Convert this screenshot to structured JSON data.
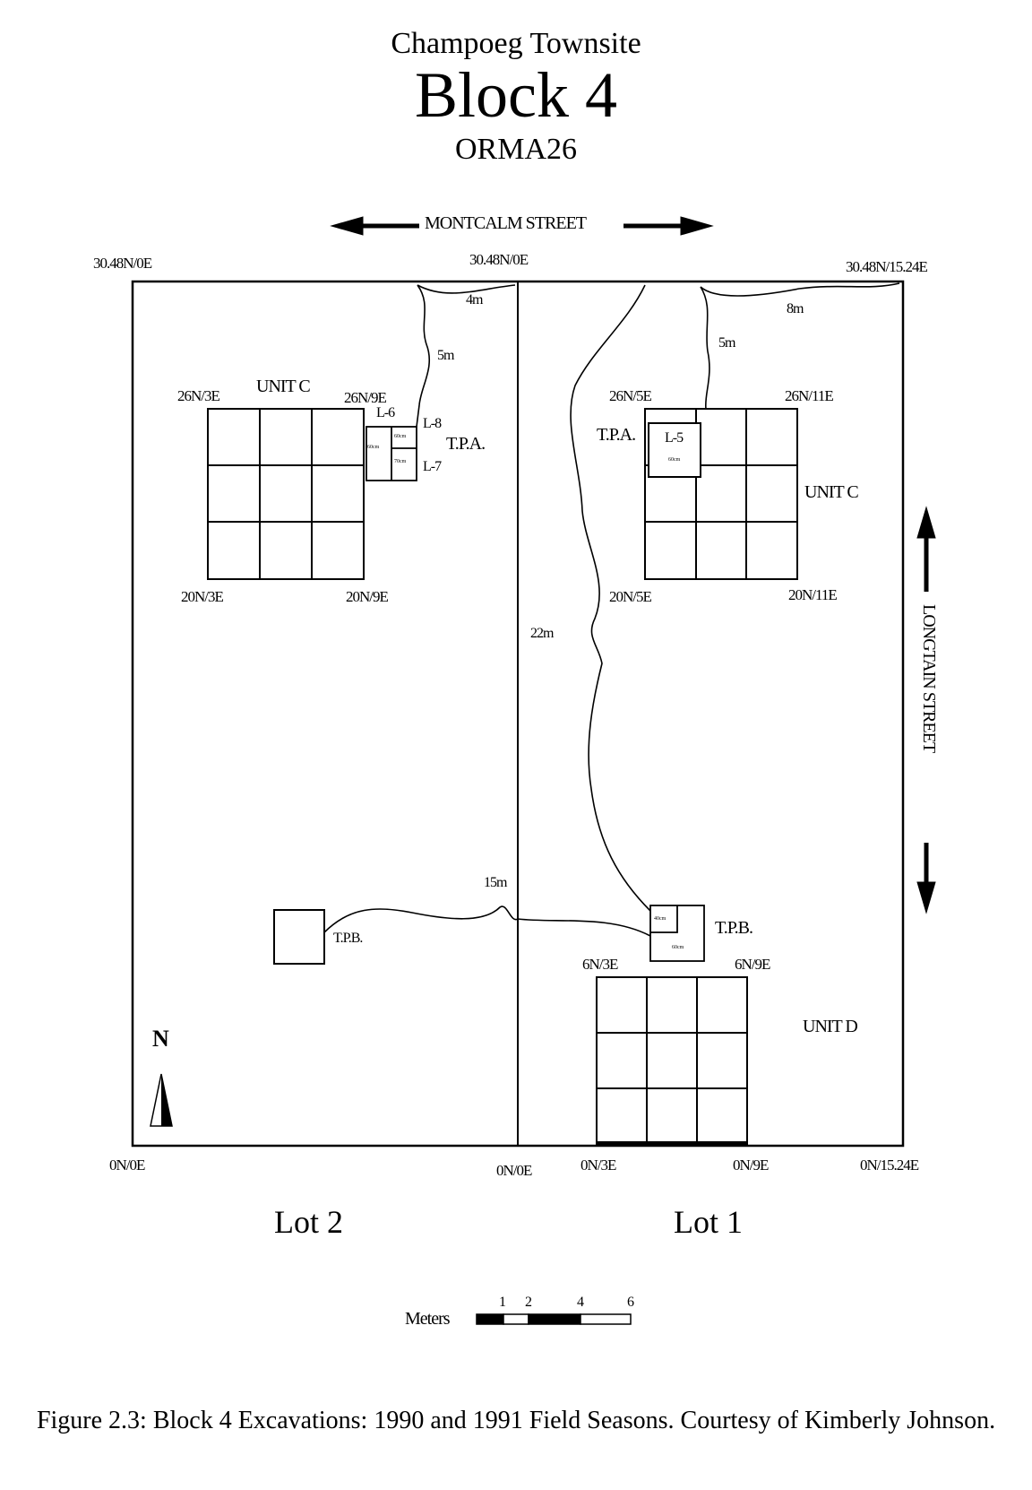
{
  "title": {
    "site": "Champoeg Townsite",
    "block": "Block 4",
    "code": "ORMA26"
  },
  "streets": {
    "top": "MONTCALM STREET",
    "right": "LONGTAIN STREET"
  },
  "corners": {
    "top_left": "30.48N/0E",
    "top_middle": "30.48N/0E",
    "top_right": "30.48N/15.24E",
    "bottom_left": "0N/0E",
    "bottom_middle": "0N/0E",
    "bottom_n3e": "0N/3E",
    "bottom_n9e": "0N/9E",
    "bottom_right": "0N/15.24E"
  },
  "lot2": {
    "label": "Lot 2",
    "unit_c": {
      "label": "UNIT C",
      "nw": "26N/3E",
      "ne": "26N/9E",
      "sw": "20N/3E",
      "se": "20N/9E"
    },
    "tpa": {
      "label": "T.P.A.",
      "l6": "L-6",
      "l7": "L-7",
      "l8": "L-8",
      "cell_a": "60cm",
      "cell_b": "60cm",
      "cell_c": "70cm"
    },
    "tpb": {
      "label": "T.P.B."
    },
    "dims": {
      "d4m": "4m",
      "d5m": "5m",
      "d15m": "15m"
    }
  },
  "lot1": {
    "label": "Lot 1",
    "unit_c": {
      "label": "UNIT C",
      "nw": "26N/5E",
      "ne": "26N/11E",
      "sw": "20N/5E",
      "se": "20N/11E"
    },
    "tpa": {
      "label": "T.P.A.",
      "l5": "L-5",
      "cell": "60cm"
    },
    "tpb": {
      "label": "T.P.B.",
      "cell_a": "40cm",
      "cell_b": "60cm"
    },
    "unit_d": {
      "label": "UNIT D",
      "nw": "6N/3E",
      "ne": "6N/9E"
    },
    "dims": {
      "d5m": "5m",
      "d8m": "8m",
      "d22m": "22m"
    }
  },
  "north": "N",
  "scale": {
    "label": "Meters",
    "ticks": [
      "1",
      "2",
      "4",
      "6"
    ]
  },
  "caption": "Figure 2.3: Block 4 Excavations: 1990 and 1991 Field Seasons. Courtesy of Kimberly Johnson."
}
